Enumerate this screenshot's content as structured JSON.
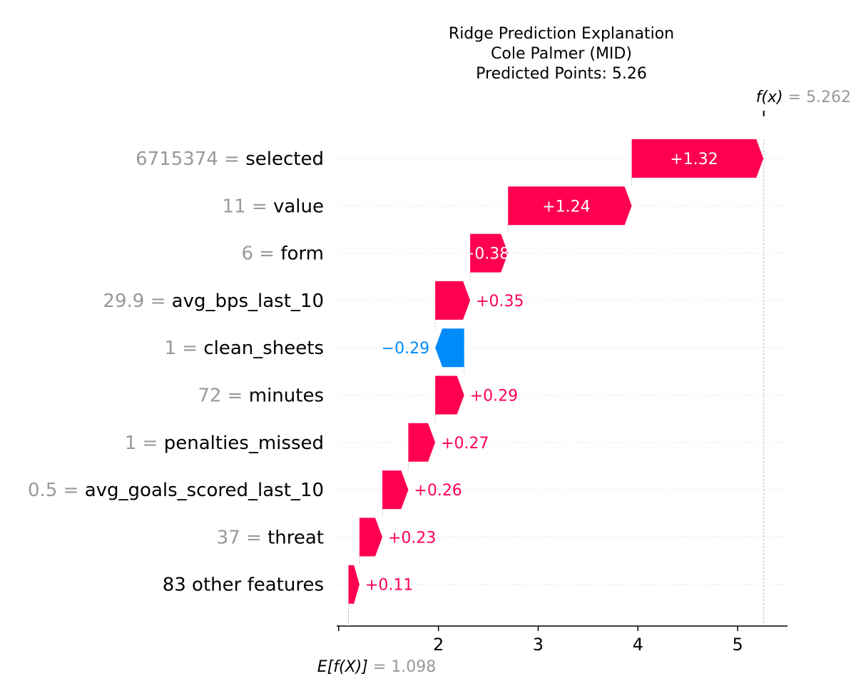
{
  "chart_data": {
    "type": "waterfall",
    "title_lines": [
      "Ridge Prediction Explanation",
      "Cole Palmer (MID)",
      "Predicted Points: 5.26"
    ],
    "base_value": 1.098,
    "base_value_label": "1.098",
    "base_label_text": "E[f(X)]",
    "final_value": 5.262,
    "final_value_label": "5.262",
    "final_label_text": "f(x)",
    "xlim": [
      0.98,
      5.5
    ],
    "xticks": [
      1,
      2,
      3,
      4,
      5
    ],
    "colors": {
      "positive": "#ff0051",
      "negative": "#008bfb",
      "value_text": "#999999"
    },
    "features": [
      {
        "value": "6715374",
        "name": "selected",
        "contribution": 1.32,
        "label": "+1.32",
        "label_inside": true
      },
      {
        "value": "11",
        "name": "value",
        "contribution": 1.24,
        "label": "+1.24",
        "label_inside": true
      },
      {
        "value": "6",
        "name": "form",
        "contribution": 0.38,
        "label": "+0.38",
        "label_inside": true
      },
      {
        "value": "29.9",
        "name": "avg_bps_last_10",
        "contribution": 0.35,
        "label": "+0.35",
        "label_inside": false
      },
      {
        "value": "1",
        "name": "clean_sheets",
        "contribution": -0.29,
        "label": "−0.29",
        "label_inside": false
      },
      {
        "value": "72",
        "name": "minutes",
        "contribution": 0.29,
        "label": "+0.29",
        "label_inside": false
      },
      {
        "value": "1",
        "name": "penalties_missed",
        "contribution": 0.27,
        "label": "+0.27",
        "label_inside": false
      },
      {
        "value": "0.5",
        "name": "avg_goals_scored_last_10",
        "contribution": 0.26,
        "label": "+0.26",
        "label_inside": false
      },
      {
        "value": "37",
        "name": "threat",
        "contribution": 0.23,
        "label": "+0.23",
        "label_inside": false
      },
      {
        "value": "",
        "name": "83 other features",
        "contribution": 0.11,
        "label": "+0.11",
        "label_inside": false
      }
    ]
  }
}
